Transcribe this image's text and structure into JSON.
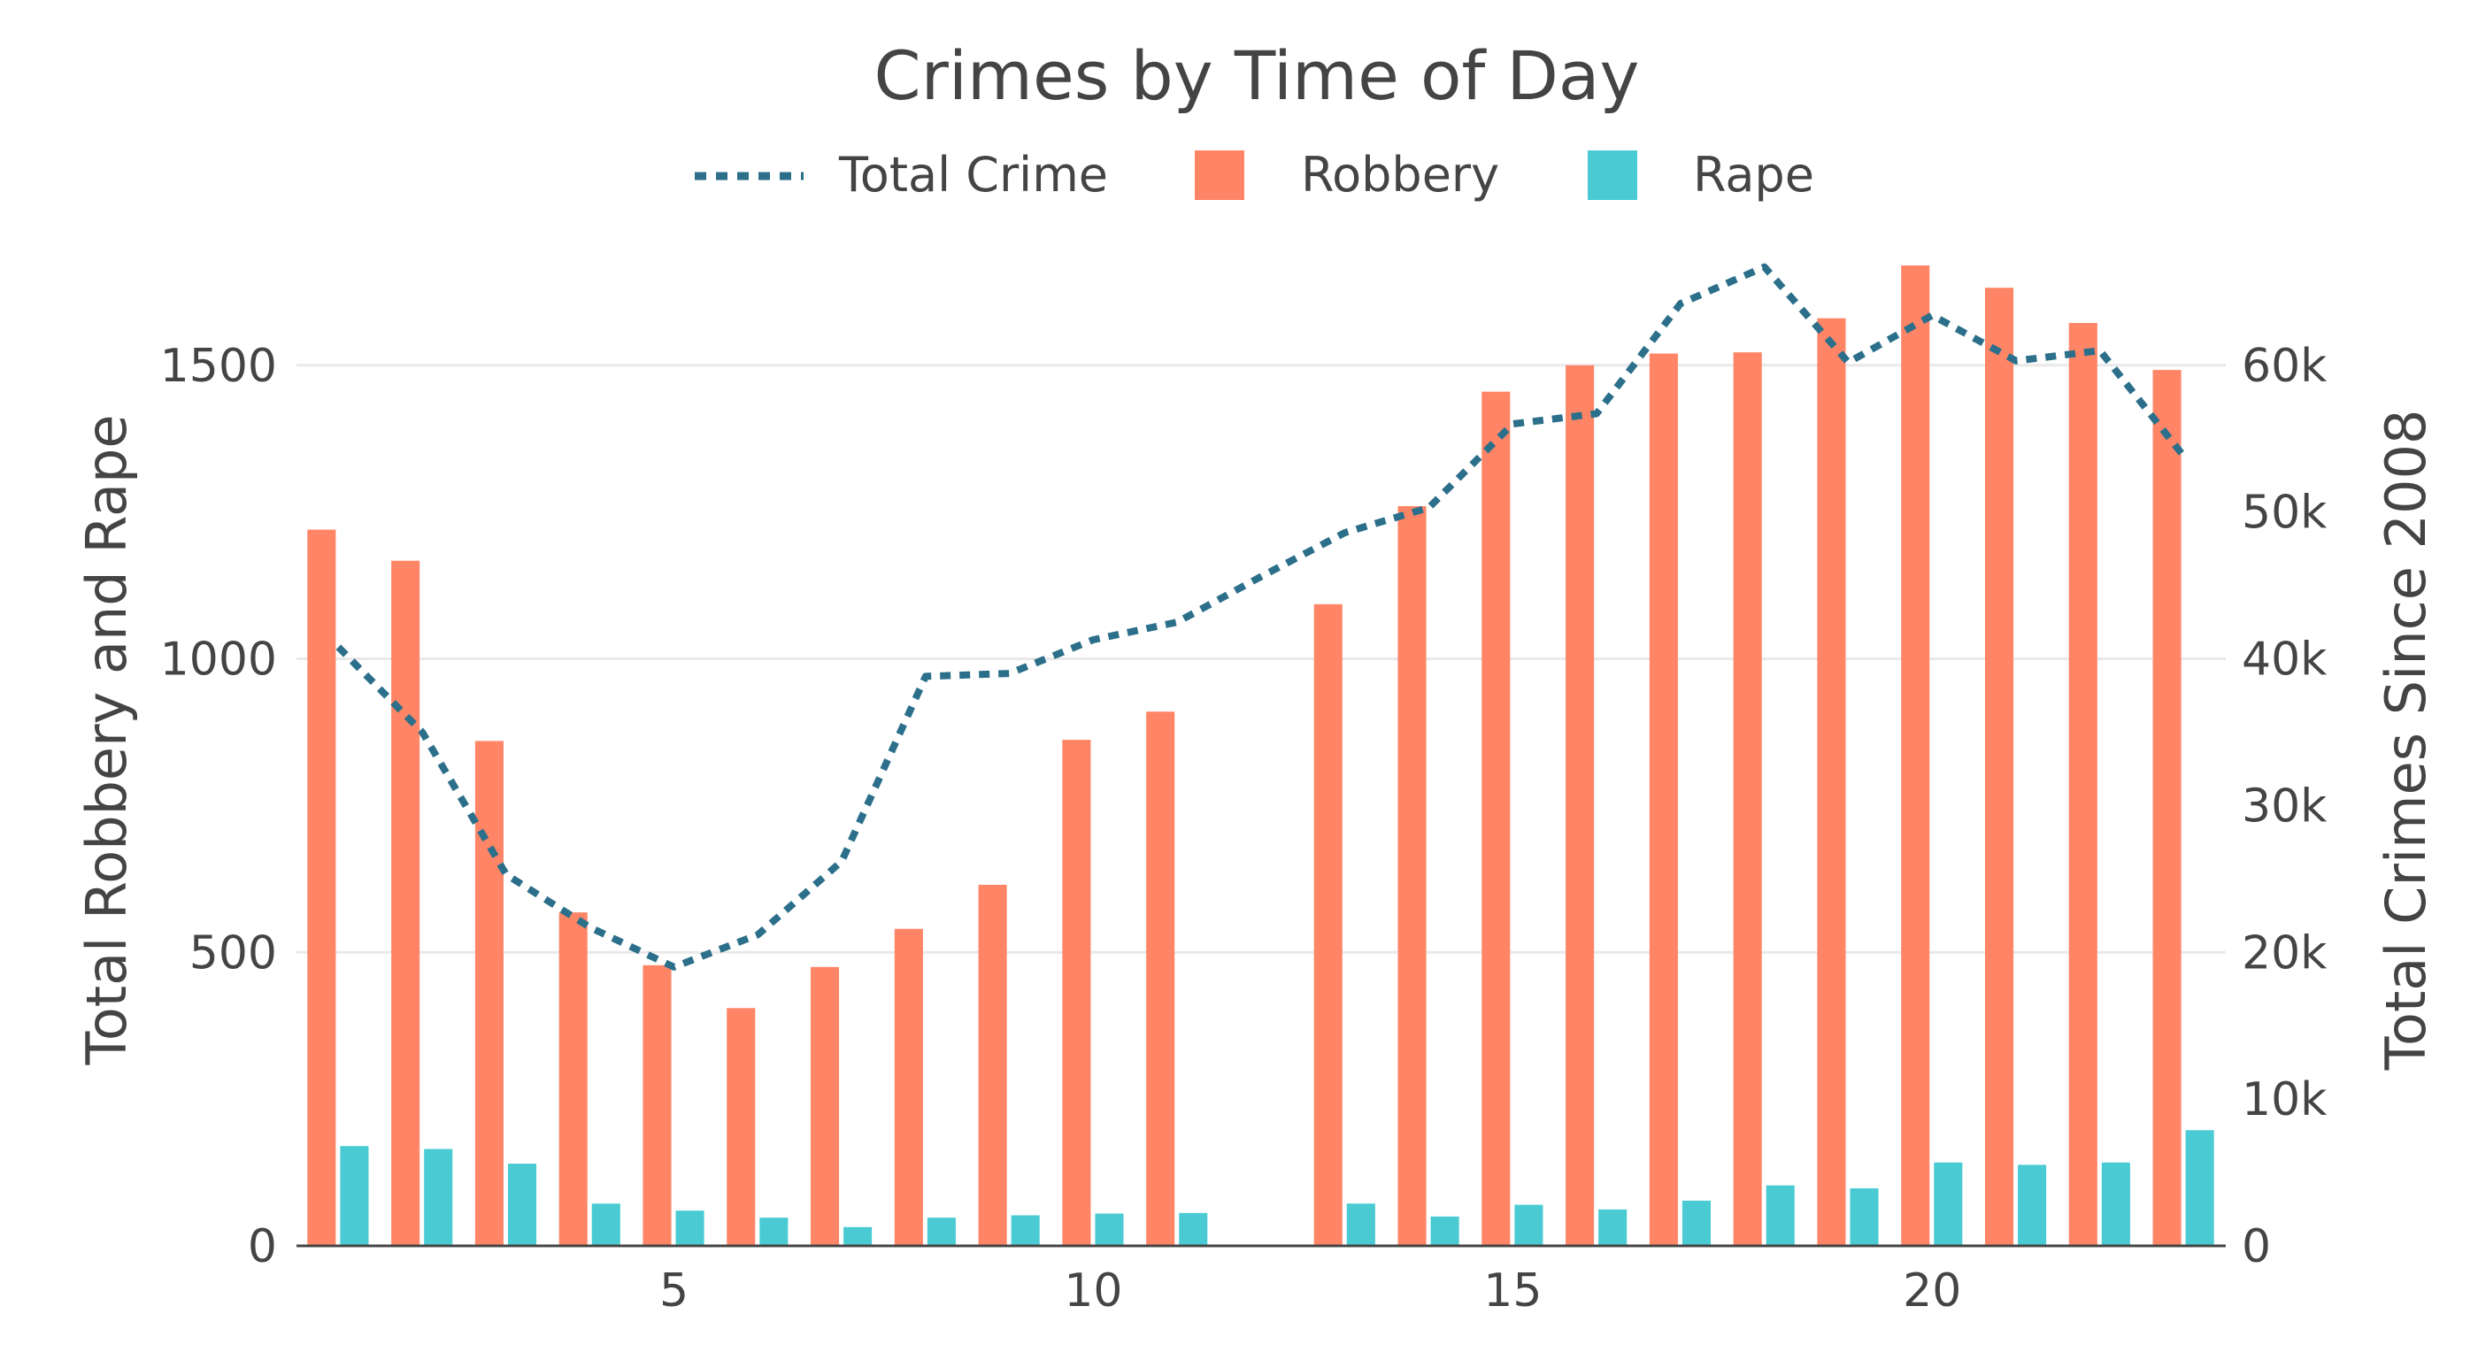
{
  "colors": {
    "robbery": "#FF8566",
    "rape": "#4ACBD3",
    "total_line": "#2B6F8A",
    "gridline": "#E9E9E9",
    "text": "#444444"
  },
  "chart_data": {
    "type": "bar",
    "title": "Crimes by Time of Day",
    "xlabel": "",
    "ylabel": "Total Robbery and Rape",
    "y2label": "Total Crimes Since 2008",
    "x": [
      1,
      2,
      3,
      4,
      5,
      6,
      7,
      8,
      9,
      10,
      11,
      13,
      14,
      15,
      16,
      17,
      18,
      19,
      20,
      21,
      22,
      23
    ],
    "xticks": [
      "5",
      "10",
      "15",
      "20"
    ],
    "xtick_values": [
      5,
      10,
      15,
      20
    ],
    "ylim": [
      0,
      1670
    ],
    "yticks": [
      "0",
      "500",
      "1000",
      "1500"
    ],
    "ytick_values": [
      0,
      500,
      1000,
      1500
    ],
    "y2lim": [
      0,
      66800
    ],
    "y2ticks": [
      "0",
      "10k",
      "20k",
      "30k",
      "40k",
      "50k",
      "60k"
    ],
    "y2tick_values": [
      0,
      10000,
      20000,
      30000,
      40000,
      50000,
      60000
    ],
    "grid": true,
    "legend": [
      "Total Crime",
      "Robbery",
      "Rape"
    ],
    "legend_position": "top-center",
    "series": [
      {
        "name": "Robbery",
        "type": "bar",
        "axis": "left",
        "values": [
          1220,
          1167,
          860,
          568,
          478,
          405,
          475,
          540,
          615,
          862,
          910,
          1093,
          1260,
          1455,
          1500,
          1520,
          1522,
          1580,
          1670,
          1632,
          1572,
          1492
        ]
      },
      {
        "name": "Rape",
        "type": "bar",
        "axis": "left",
        "values": [
          170,
          165,
          140,
          72,
          60,
          48,
          32,
          48,
          52,
          55,
          56,
          72,
          50,
          70,
          62,
          77,
          103,
          98,
          142,
          138,
          142,
          197
        ]
      },
      {
        "name": "Total Crime",
        "type": "line",
        "axis": "right",
        "x": [
          1,
          2,
          3,
          4,
          5,
          6,
          7,
          8,
          9,
          10,
          11,
          12,
          13,
          14,
          15,
          16,
          17,
          18,
          19,
          20,
          21,
          22,
          23
        ],
        "values": [
          40800,
          35000,
          25300,
          21700,
          19000,
          21200,
          26200,
          38800,
          39000,
          41300,
          42500,
          45600,
          48600,
          50300,
          56000,
          56700,
          64200,
          66700,
          60200,
          63400,
          60300,
          61000,
          53800
        ]
      }
    ]
  }
}
